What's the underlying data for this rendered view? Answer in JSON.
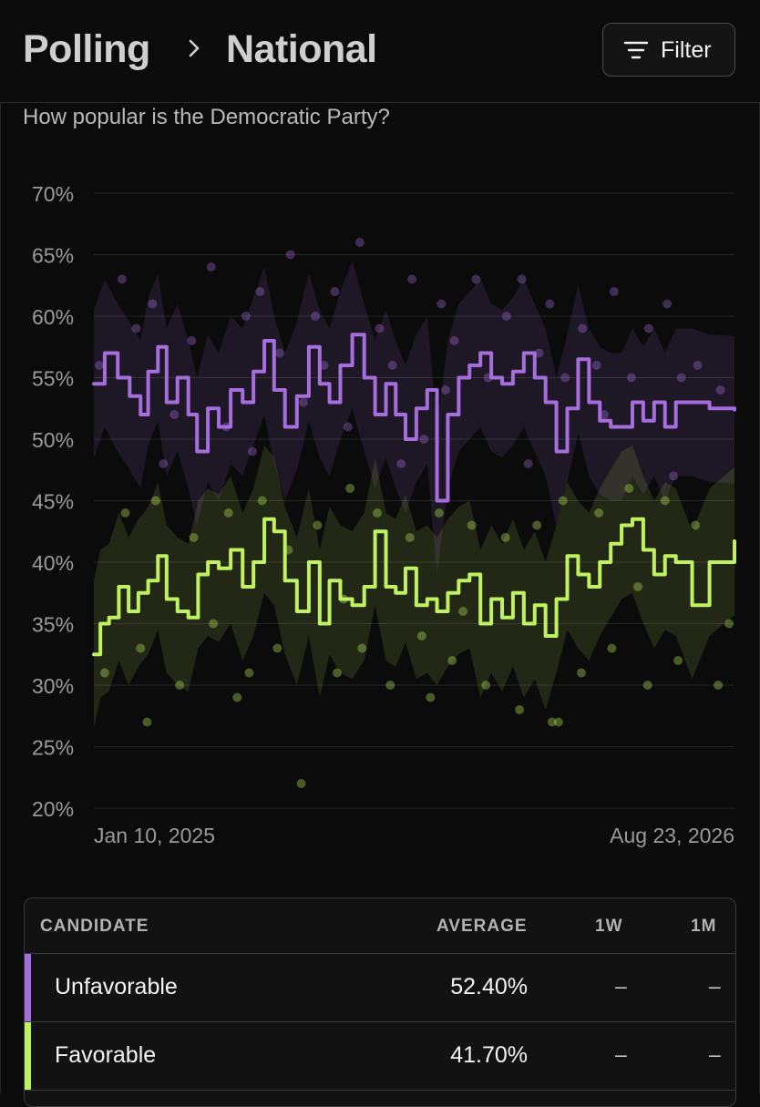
{
  "breadcrumb": {
    "section": "Polling",
    "page": "National"
  },
  "filter_label": "Filter",
  "subtitle": "How popular is the Democratic Party?",
  "colors": {
    "unfavorable": "#a66ddc",
    "favorable": "#c0f25f",
    "background": "#0b0b0b"
  },
  "chart_data": {
    "type": "line",
    "title": "",
    "xlabel": "",
    "ylabel": "",
    "x_tick_labels": [
      "Jan 10, 2025",
      "Aug 23, 2026"
    ],
    "x_range": [
      "2025-01-10",
      "2026-08-23"
    ],
    "y_ticks": [
      "70%",
      "65%",
      "60%",
      "55%",
      "50%",
      "45%",
      "40%",
      "35%",
      "30%",
      "25%",
      "20%"
    ],
    "ylim": [
      20,
      70
    ],
    "grid": true,
    "series": [
      {
        "name": "Unfavorable",
        "color": "#a66ddc",
        "points": [
          [
            "2025-01-10",
            54.5
          ],
          [
            "2025-01-20",
            57.0
          ],
          [
            "2025-02-01",
            55.0
          ],
          [
            "2025-02-12",
            53.5
          ],
          [
            "2025-02-22",
            52.0
          ],
          [
            "2025-03-01",
            55.5
          ],
          [
            "2025-03-10",
            57.5
          ],
          [
            "2025-03-18",
            53.0
          ],
          [
            "2025-03-28",
            55.0
          ],
          [
            "2025-04-07",
            52.0
          ],
          [
            "2025-04-15",
            49.0
          ],
          [
            "2025-04-25",
            52.5
          ],
          [
            "2025-05-05",
            51.0
          ],
          [
            "2025-05-16",
            54.0
          ],
          [
            "2025-05-27",
            53.0
          ],
          [
            "2025-06-06",
            55.5
          ],
          [
            "2025-06-16",
            58.0
          ],
          [
            "2025-06-25",
            54.0
          ],
          [
            "2025-07-05",
            51.0
          ],
          [
            "2025-07-16",
            53.5
          ],
          [
            "2025-07-27",
            57.5
          ],
          [
            "2025-08-06",
            54.5
          ],
          [
            "2025-08-15",
            53.0
          ],
          [
            "2025-08-25",
            56.0
          ],
          [
            "2025-09-05",
            58.5
          ],
          [
            "2025-09-16",
            55.0
          ],
          [
            "2025-09-26",
            52.0
          ],
          [
            "2025-10-06",
            54.5
          ],
          [
            "2025-10-15",
            52.0
          ],
          [
            "2025-10-24",
            50.0
          ],
          [
            "2025-11-03",
            52.5
          ],
          [
            "2025-11-13",
            54.0
          ],
          [
            "2025-11-22",
            45.0
          ],
          [
            "2025-12-02",
            52.0
          ],
          [
            "2025-12-12",
            55.0
          ],
          [
            "2025-12-22",
            56.0
          ],
          [
            "2026-01-01",
            57.0
          ],
          [
            "2026-01-11",
            55.0
          ],
          [
            "2026-01-21",
            54.5
          ],
          [
            "2026-01-31",
            55.5
          ],
          [
            "2026-02-10",
            57.0
          ],
          [
            "2026-02-20",
            55.0
          ],
          [
            "2026-03-02",
            53.0
          ],
          [
            "2026-03-12",
            49.0
          ],
          [
            "2026-03-22",
            52.5
          ],
          [
            "2026-04-01",
            56.5
          ],
          [
            "2026-04-11",
            53.0
          ],
          [
            "2026-04-21",
            51.5
          ],
          [
            "2026-05-01",
            51.0
          ],
          [
            "2026-05-11",
            51.0
          ],
          [
            "2026-05-21",
            53.0
          ],
          [
            "2026-05-31",
            51.5
          ],
          [
            "2026-06-10",
            53.0
          ],
          [
            "2026-06-20",
            51.0
          ],
          [
            "2026-06-30",
            53.0
          ],
          [
            "2026-07-15",
            53.0
          ],
          [
            "2026-07-31",
            52.5
          ],
          [
            "2026-08-23",
            52.4
          ]
        ]
      },
      {
        "name": "Favorable",
        "color": "#c0f25f",
        "points": [
          [
            "2025-01-10",
            32.5
          ],
          [
            "2025-01-16",
            35.0
          ],
          [
            "2025-01-24",
            35.5
          ],
          [
            "2025-02-02",
            38.0
          ],
          [
            "2025-02-11",
            36.0
          ],
          [
            "2025-02-20",
            37.5
          ],
          [
            "2025-03-01",
            38.5
          ],
          [
            "2025-03-10",
            40.5
          ],
          [
            "2025-03-18",
            37.0
          ],
          [
            "2025-03-28",
            36.0
          ],
          [
            "2025-04-07",
            35.5
          ],
          [
            "2025-04-16",
            39.0
          ],
          [
            "2025-04-25",
            40.0
          ],
          [
            "2025-05-05",
            39.5
          ],
          [
            "2025-05-16",
            41.0
          ],
          [
            "2025-05-27",
            38.0
          ],
          [
            "2025-06-06",
            40.0
          ],
          [
            "2025-06-16",
            43.5
          ],
          [
            "2025-06-25",
            42.5
          ],
          [
            "2025-07-05",
            38.5
          ],
          [
            "2025-07-16",
            36.0
          ],
          [
            "2025-07-27",
            40.0
          ],
          [
            "2025-08-06",
            35.0
          ],
          [
            "2025-08-15",
            38.5
          ],
          [
            "2025-08-25",
            37.0
          ],
          [
            "2025-09-05",
            36.5
          ],
          [
            "2025-09-16",
            38.0
          ],
          [
            "2025-09-26",
            42.5
          ],
          [
            "2025-10-06",
            38.0
          ],
          [
            "2025-10-15",
            37.5
          ],
          [
            "2025-10-24",
            39.5
          ],
          [
            "2025-11-03",
            36.5
          ],
          [
            "2025-11-13",
            37.0
          ],
          [
            "2025-11-22",
            36.0
          ],
          [
            "2025-12-02",
            37.5
          ],
          [
            "2025-12-12",
            38.5
          ],
          [
            "2025-12-22",
            39.0
          ],
          [
            "2026-01-01",
            35.0
          ],
          [
            "2026-01-11",
            37.0
          ],
          [
            "2026-01-21",
            35.5
          ],
          [
            "2026-01-31",
            37.5
          ],
          [
            "2026-02-10",
            35.0
          ],
          [
            "2026-02-20",
            36.5
          ],
          [
            "2026-03-02",
            34.0
          ],
          [
            "2026-03-12",
            37.0
          ],
          [
            "2026-03-22",
            40.5
          ],
          [
            "2026-04-01",
            39.0
          ],
          [
            "2026-04-11",
            38.0
          ],
          [
            "2026-04-21",
            40.0
          ],
          [
            "2026-05-01",
            41.5
          ],
          [
            "2026-05-11",
            43.0
          ],
          [
            "2026-05-21",
            43.5
          ],
          [
            "2026-05-31",
            41.0
          ],
          [
            "2026-06-10",
            39.0
          ],
          [
            "2026-06-20",
            40.5
          ],
          [
            "2026-06-30",
            40.0
          ],
          [
            "2026-07-15",
            36.5
          ],
          [
            "2026-07-31",
            40.0
          ],
          [
            "2026-08-23",
            41.7
          ]
        ]
      }
    ],
    "poll_points": {
      "Unfavorable": [
        [
          "2025-01-15",
          56
        ],
        [
          "2025-02-05",
          63
        ],
        [
          "2025-02-18",
          59
        ],
        [
          "2025-03-05",
          61
        ],
        [
          "2025-03-25",
          52
        ],
        [
          "2025-04-10",
          58
        ],
        [
          "2025-04-28",
          64
        ],
        [
          "2025-05-12",
          51
        ],
        [
          "2025-05-30",
          60
        ],
        [
          "2025-06-12",
          62
        ],
        [
          "2025-06-30",
          57
        ],
        [
          "2025-07-10",
          65
        ],
        [
          "2025-07-22",
          53
        ],
        [
          "2025-08-02",
          60
        ],
        [
          "2025-08-20",
          62
        ],
        [
          "2025-09-01",
          51
        ],
        [
          "2025-09-12",
          66
        ],
        [
          "2025-09-30",
          59
        ],
        [
          "2025-10-12",
          56
        ],
        [
          "2025-10-30",
          63
        ],
        [
          "2025-11-10",
          50
        ],
        [
          "2025-11-26",
          61
        ],
        [
          "2025-12-08",
          58
        ],
        [
          "2025-12-28",
          63
        ],
        [
          "2026-01-08",
          55
        ],
        [
          "2026-01-25",
          60
        ],
        [
          "2026-02-08",
          63
        ],
        [
          "2026-02-24",
          57
        ],
        [
          "2026-03-06",
          61
        ],
        [
          "2026-03-20",
          55
        ],
        [
          "2026-04-05",
          59
        ],
        [
          "2026-04-18",
          56
        ],
        [
          "2026-05-04",
          62
        ],
        [
          "2026-05-20",
          55
        ],
        [
          "2026-06-05",
          59
        ],
        [
          "2026-06-22",
          61
        ],
        [
          "2026-07-05",
          55
        ],
        [
          "2026-07-20",
          56
        ],
        [
          "2026-08-10",
          54
        ],
        [
          "2025-03-15",
          48
        ],
        [
          "2025-06-05",
          49
        ],
        [
          "2025-10-20",
          48
        ],
        [
          "2026-02-14",
          48
        ],
        [
          "2026-06-28",
          47
        ],
        [
          "2025-08-10",
          56
        ],
        [
          "2025-11-30",
          54
        ],
        [
          "2026-04-25",
          52
        ]
      ],
      "Favorable": [
        [
          "2025-01-20",
          31
        ],
        [
          "2025-02-08",
          44
        ],
        [
          "2025-02-22",
          33
        ],
        [
          "2025-03-08",
          45
        ],
        [
          "2025-03-30",
          30
        ],
        [
          "2025-04-12",
          42
        ],
        [
          "2025-04-30",
          35
        ],
        [
          "2025-05-14",
          44
        ],
        [
          "2025-06-02",
          31
        ],
        [
          "2025-06-14",
          45
        ],
        [
          "2025-06-28",
          33
        ],
        [
          "2025-07-08",
          41
        ],
        [
          "2025-07-20",
          22
        ],
        [
          "2025-08-04",
          43
        ],
        [
          "2025-08-22",
          31
        ],
        [
          "2025-09-03",
          46
        ],
        [
          "2025-09-14",
          33
        ],
        [
          "2025-09-28",
          44
        ],
        [
          "2025-10-10",
          30
        ],
        [
          "2025-10-28",
          42
        ],
        [
          "2025-11-08",
          34
        ],
        [
          "2025-11-24",
          44
        ],
        [
          "2025-12-06",
          32
        ],
        [
          "2025-12-24",
          43
        ],
        [
          "2026-01-06",
          30
        ],
        [
          "2026-01-24",
          42
        ],
        [
          "2026-02-06",
          28
        ],
        [
          "2026-02-22",
          43
        ],
        [
          "2026-03-08",
          27
        ],
        [
          "2026-03-18",
          45
        ],
        [
          "2026-04-04",
          31
        ],
        [
          "2026-04-20",
          44
        ],
        [
          "2026-05-02",
          33
        ],
        [
          "2026-05-18",
          46
        ],
        [
          "2026-06-04",
          30
        ],
        [
          "2026-06-20",
          45
        ],
        [
          "2026-07-02",
          32
        ],
        [
          "2026-07-18",
          43
        ],
        [
          "2026-08-08",
          30
        ],
        [
          "2026-08-18",
          35
        ],
        [
          "2025-02-28",
          27
        ],
        [
          "2025-05-22",
          29
        ],
        [
          "2025-11-16",
          29
        ],
        [
          "2026-03-14",
          27
        ],
        [
          "2025-08-28",
          37
        ],
        [
          "2026-05-26",
          38
        ],
        [
          "2025-12-16",
          36
        ]
      ]
    }
  },
  "table": {
    "headers": {
      "candidate": "CANDIDATE",
      "average": "AVERAGE",
      "w1": "1W",
      "m1": "1M"
    },
    "rows": [
      {
        "name": "Unfavorable",
        "average": "52.40%",
        "w1": "–",
        "m1": "–",
        "color": "#a66ddc"
      },
      {
        "name": "Favorable",
        "average": "41.70%",
        "w1": "–",
        "m1": "–",
        "color": "#c0f25f"
      }
    ]
  }
}
